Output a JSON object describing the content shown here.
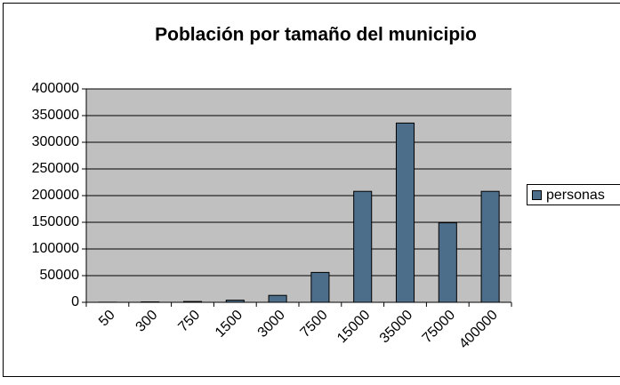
{
  "chart_data": {
    "type": "bar",
    "title": "Población por tamaño del municipio",
    "categories": [
      "50",
      "300",
      "750",
      "1500",
      "3000",
      "7500",
      "15000",
      "35000",
      "75000",
      "400000"
    ],
    "series": [
      {
        "name": "personas",
        "color": "#4d6e8a",
        "values": [
          200,
          800,
          1500,
          4000,
          13000,
          56000,
          208000,
          336000,
          149000,
          208000
        ]
      }
    ],
    "ylim": [
      0,
      400000
    ],
    "yticks": [
      0,
      50000,
      100000,
      150000,
      200000,
      250000,
      300000,
      350000,
      400000
    ],
    "grid": true,
    "legend": "right"
  }
}
